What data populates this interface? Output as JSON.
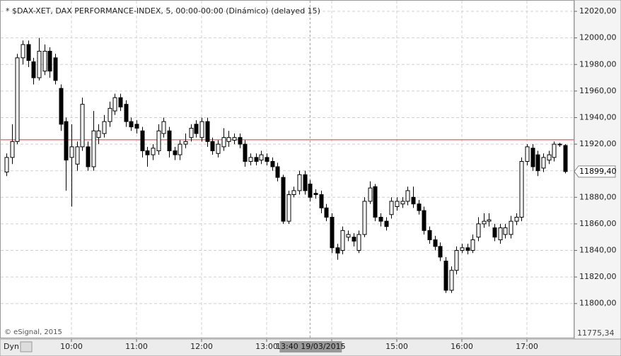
{
  "chart_data": {
    "type": "candlestick",
    "title": "* $DAX-XET, DAX PERFORMANCE-INDEX, 5, 00:00-00:00 (Dinámico) (delayed 15)",
    "watermark": "© eSignal, 2015",
    "button": "Dyn",
    "categories": [
      null,
      null,
      null,
      null,
      null,
      null,
      null,
      null,
      null,
      null,
      null,
      null,
      "10:00",
      null,
      null,
      null,
      null,
      null,
      null,
      null,
      null,
      null,
      null,
      null,
      "11:00",
      null,
      null,
      null,
      null,
      null,
      null,
      null,
      null,
      null,
      null,
      null,
      "12:00",
      null,
      null,
      null,
      null,
      null,
      null,
      null,
      null,
      null,
      null,
      null,
      "13:00",
      null,
      null,
      null,
      null,
      null,
      null,
      null,
      null,
      null,
      null,
      null,
      "14:00",
      null,
      null,
      null,
      null,
      null,
      null,
      null,
      null,
      null,
      null,
      null,
      "15:00",
      null,
      null,
      null,
      null,
      null,
      null,
      null,
      null,
      null,
      null,
      null,
      "16:00",
      null,
      null,
      null,
      null,
      null,
      null,
      null,
      null,
      null,
      null,
      null,
      "17:00",
      null,
      null,
      null,
      null,
      null,
      null,
      null
    ],
    "open": [
      11899,
      11910,
      11922,
      11985,
      11995,
      11982,
      11970,
      11975,
      11990,
      11985,
      11962,
      11937,
      11910,
      11905,
      11918,
      11918,
      11903,
      11925,
      11928,
      11937,
      11945,
      11955,
      11950,
      11937,
      11935,
      11930,
      11915,
      11912,
      11915,
      11928,
      11930,
      11915,
      11912,
      11920,
      11925,
      11935,
      11925,
      11937,
      11922,
      11913,
      11918,
      11922,
      11923,
      11925,
      11920,
      11907,
      11910,
      11908,
      11910,
      11907,
      11903,
      11895,
      11862,
      11882,
      11885,
      11897,
      11890,
      11883,
      11882,
      11872,
      11865,
      11842,
      11840,
      11850,
      11850,
      11840,
      11852,
      11877,
      11888,
      11865,
      11862,
      11867,
      11873,
      11875,
      11877,
      11880,
      11875,
      11870,
      11855,
      11848,
      11843,
      11832,
      11810,
      11825,
      11840,
      11842,
      11840,
      11850,
      11860,
      11862,
      11857,
      11848,
      11852,
      11852,
      11862,
      11865,
      11907,
      11917,
      11912,
      11902,
      11908,
      11910,
      11920,
      11919
    ],
    "high": [
      11913,
      11935,
      11988,
      11998,
      11998,
      11985,
      12000,
      11995,
      11993,
      11988,
      11965,
      11940,
      11935,
      11922,
      11955,
      11922,
      11945,
      11935,
      11942,
      11952,
      11958,
      11958,
      11953,
      11940,
      11938,
      11933,
      11918,
      11920,
      11935,
      11940,
      11933,
      11918,
      11923,
      11928,
      11935,
      11938,
      11940,
      11940,
      11925,
      11923,
      11932,
      11930,
      11928,
      11928,
      11923,
      11913,
      11913,
      11915,
      11913,
      11910,
      11906,
      11897,
      11885,
      11888,
      11900,
      11900,
      11893,
      11886,
      11885,
      11875,
      11868,
      11845,
      11858,
      11855,
      11853,
      11855,
      11880,
      11892,
      11890,
      11868,
      11865,
      11880,
      11880,
      11880,
      11888,
      11888,
      11878,
      11873,
      11858,
      11851,
      11846,
      11835,
      11828,
      11843,
      11845,
      11845,
      11852,
      11865,
      11868,
      11868,
      11860,
      11860,
      11860,
      11866,
      11868,
      11910,
      11920,
      11920,
      11915,
      11913,
      11915,
      11922,
      11921,
      11920
    ],
    "low": [
      11896,
      11905,
      11920,
      11980,
      11978,
      11965,
      11968,
      11972,
      11970,
      11965,
      11930,
      11885,
      11873,
      11900,
      11915,
      11900,
      11900,
      11920,
      11925,
      11933,
      11942,
      11945,
      11933,
      11930,
      11928,
      11910,
      11903,
      11908,
      11912,
      11925,
      11910,
      11908,
      11908,
      11917,
      11922,
      11925,
      11922,
      11918,
      11912,
      11910,
      11915,
      11918,
      11920,
      11917,
      11903,
      11904,
      11904,
      11905,
      11904,
      11900,
      11892,
      11860,
      11860,
      11880,
      11882,
      11882,
      11877,
      11879,
      11868,
      11862,
      11838,
      11833,
      11837,
      11847,
      11843,
      11838,
      11850,
      11875,
      11862,
      11858,
      11855,
      11864,
      11870,
      11872,
      11874,
      11872,
      11867,
      11852,
      11845,
      11840,
      11832,
      11808,
      11808,
      11822,
      11838,
      11837,
      11838,
      11847,
      11857,
      11858,
      11847,
      11845,
      11849,
      11849,
      11859,
      11862,
      11904,
      11900,
      11896,
      11899,
      11905,
      11907,
      11918,
      11898
    ],
    "close": [
      11910,
      11922,
      11985,
      11995,
      11983,
      11970,
      11990,
      11990,
      11975,
      11968,
      11935,
      11908,
      11918,
      11918,
      11950,
      11903,
      11930,
      11930,
      11937,
      11947,
      11955,
      11948,
      11937,
      11933,
      11932,
      11915,
      11912,
      11917,
      11930,
      11937,
      11915,
      11912,
      11920,
      11922,
      11932,
      11928,
      11937,
      11922,
      11915,
      11920,
      11925,
      11925,
      11925,
      11920,
      11907,
      11910,
      11907,
      11912,
      11907,
      11903,
      11895,
      11862,
      11882,
      11885,
      11897,
      11885,
      11880,
      11882,
      11872,
      11865,
      11842,
      11838,
      11855,
      11852,
      11847,
      11852,
      11877,
      11887,
      11865,
      11862,
      11858,
      11877,
      11877,
      11877,
      11885,
      11875,
      11870,
      11855,
      11848,
      11843,
      11835,
      11810,
      11825,
      11840,
      11842,
      11840,
      11848,
      11860,
      11862,
      11863,
      11850,
      11857,
      11857,
      11862,
      11865,
      11907,
      11918,
      11903,
      11900,
      11910,
      11912,
      11920,
      11920,
      11899.4
    ],
    "up_color": "#ffffff",
    "down_color": "#000000",
    "ylim": [
      11777,
      12028
    ],
    "yticks": [
      {
        "value": 11800,
        "label": "11800,00"
      },
      {
        "value": 11820,
        "label": "11820,00"
      },
      {
        "value": 11840,
        "label": "11840,00"
      },
      {
        "value": 11860,
        "label": "11860,00"
      },
      {
        "value": 11880,
        "label": "11880,00"
      },
      {
        "value": 11900,
        "label": "11900,00"
      },
      {
        "value": 11920,
        "label": "11920,00"
      },
      {
        "value": 11940,
        "label": "11940,00"
      },
      {
        "value": 11960,
        "label": "11960,00"
      },
      {
        "value": 11980,
        "label": "11980,00"
      },
      {
        "value": 12000,
        "label": "12000,00"
      },
      {
        "value": 12020,
        "label": "12020,00"
      }
    ],
    "grid": true,
    "ref_line": {
      "value": 11923.3,
      "color": "#e03030"
    },
    "last_price": {
      "value": 11899.4,
      "label": "11899,40"
    },
    "crosshair": {
      "index": 56,
      "x_label": "13:40 19/03/2015",
      "y": 11775.34,
      "y_label": "11775,34"
    }
  }
}
